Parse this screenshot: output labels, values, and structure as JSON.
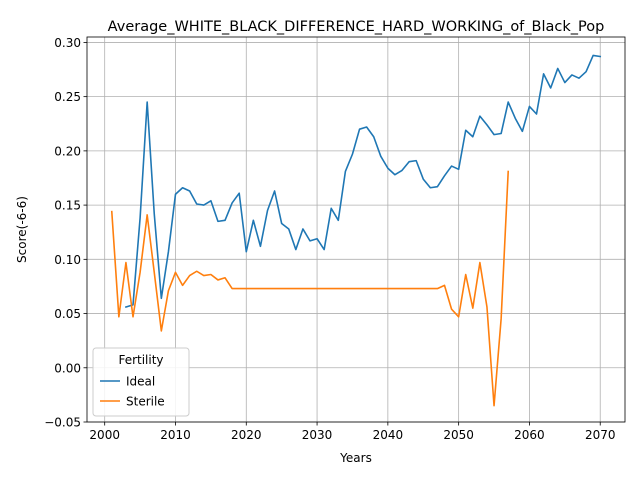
{
  "chart_data": {
    "type": "line",
    "title": "Average_WHITE_BLACK_DIFFERENCE_HARD_WORKING_of_Black_Pop",
    "xlabel": "Years",
    "ylabel": "Score(-6-6)",
    "xlim": [
      1997.5,
      2073.5
    ],
    "ylim": [
      -0.05,
      0.305
    ],
    "xticks": [
      2000,
      2010,
      2020,
      2030,
      2040,
      2050,
      2060,
      2070
    ],
    "yticks": [
      -0.05,
      0.0,
      0.05,
      0.1,
      0.15,
      0.2,
      0.25,
      0.3
    ],
    "ytick_labels": [
      "−0.05",
      "0.00",
      "0.05",
      "0.10",
      "0.15",
      "0.20",
      "0.25",
      "0.30"
    ],
    "grid": true,
    "legend": {
      "title": "Fertility",
      "placement": "lower-left"
    },
    "series": [
      {
        "name": "Ideal",
        "color": "#1f77b4",
        "x": [
          2003,
          2004,
          2005,
          2006,
          2007,
          2008,
          2009,
          2010,
          2011,
          2012,
          2013,
          2014,
          2015,
          2016,
          2017,
          2018,
          2019,
          2020,
          2021,
          2022,
          2023,
          2024,
          2025,
          2026,
          2027,
          2028,
          2029,
          2030,
          2031,
          2032,
          2033,
          2034,
          2035,
          2036,
          2037,
          2038,
          2039,
          2040,
          2041,
          2042,
          2043,
          2044,
          2045,
          2046,
          2047,
          2048,
          2049,
          2050,
          2051,
          2052,
          2053,
          2054,
          2055,
          2056,
          2057,
          2058,
          2059,
          2060,
          2061,
          2062,
          2063,
          2064,
          2065,
          2066,
          2067,
          2068,
          2069,
          2070
        ],
        "values": [
          0.056,
          0.058,
          0.138,
          0.245,
          0.142,
          0.064,
          0.107,
          0.16,
          0.166,
          0.163,
          0.151,
          0.15,
          0.154,
          0.135,
          0.136,
          0.152,
          0.161,
          0.107,
          0.136,
          0.112,
          0.145,
          0.163,
          0.133,
          0.128,
          0.109,
          0.128,
          0.117,
          0.119,
          0.109,
          0.147,
          0.136,
          0.181,
          0.197,
          0.22,
          0.222,
          0.213,
          0.195,
          0.184,
          0.178,
          0.182,
          0.19,
          0.191,
          0.174,
          0.166,
          0.167,
          0.177,
          0.186,
          0.183,
          0.219,
          0.213,
          0.232,
          0.224,
          0.215,
          0.216,
          0.245,
          0.23,
          0.218,
          0.241,
          0.234,
          0.271,
          0.258,
          0.276,
          0.263,
          0.27,
          0.267,
          0.273,
          0.288,
          0.287
        ]
      },
      {
        "name": "Sterile",
        "color": "#ff7f0e",
        "x": [
          2001,
          2002,
          2003,
          2004,
          2005,
          2006,
          2007,
          2008,
          2009,
          2010,
          2011,
          2012,
          2013,
          2014,
          2015,
          2016,
          2017,
          2018,
          2019,
          2020,
          2021,
          2022,
          2023,
          2024,
          2025,
          2026,
          2027,
          2028,
          2029,
          2030,
          2031,
          2032,
          2033,
          2034,
          2035,
          2036,
          2037,
          2038,
          2039,
          2040,
          2041,
          2042,
          2043,
          2044,
          2045,
          2046,
          2047,
          2048,
          2049,
          2050,
          2051,
          2052,
          2053,
          2054,
          2055,
          2056,
          2057
        ],
        "values": [
          0.144,
          0.047,
          0.097,
          0.047,
          0.088,
          0.141,
          0.088,
          0.034,
          0.071,
          0.088,
          0.076,
          0.085,
          0.089,
          0.085,
          0.086,
          0.081,
          0.083,
          0.073,
          0.073,
          0.073,
          0.073,
          0.073,
          0.073,
          0.073,
          0.073,
          0.073,
          0.073,
          0.073,
          0.073,
          0.073,
          0.073,
          0.073,
          0.073,
          0.073,
          0.073,
          0.073,
          0.073,
          0.073,
          0.073,
          0.073,
          0.073,
          0.073,
          0.073,
          0.073,
          0.073,
          0.073,
          0.073,
          0.076,
          0.054,
          0.047,
          0.086,
          0.055,
          0.097,
          0.056,
          -0.035,
          0.045,
          0.181
        ]
      }
    ]
  }
}
